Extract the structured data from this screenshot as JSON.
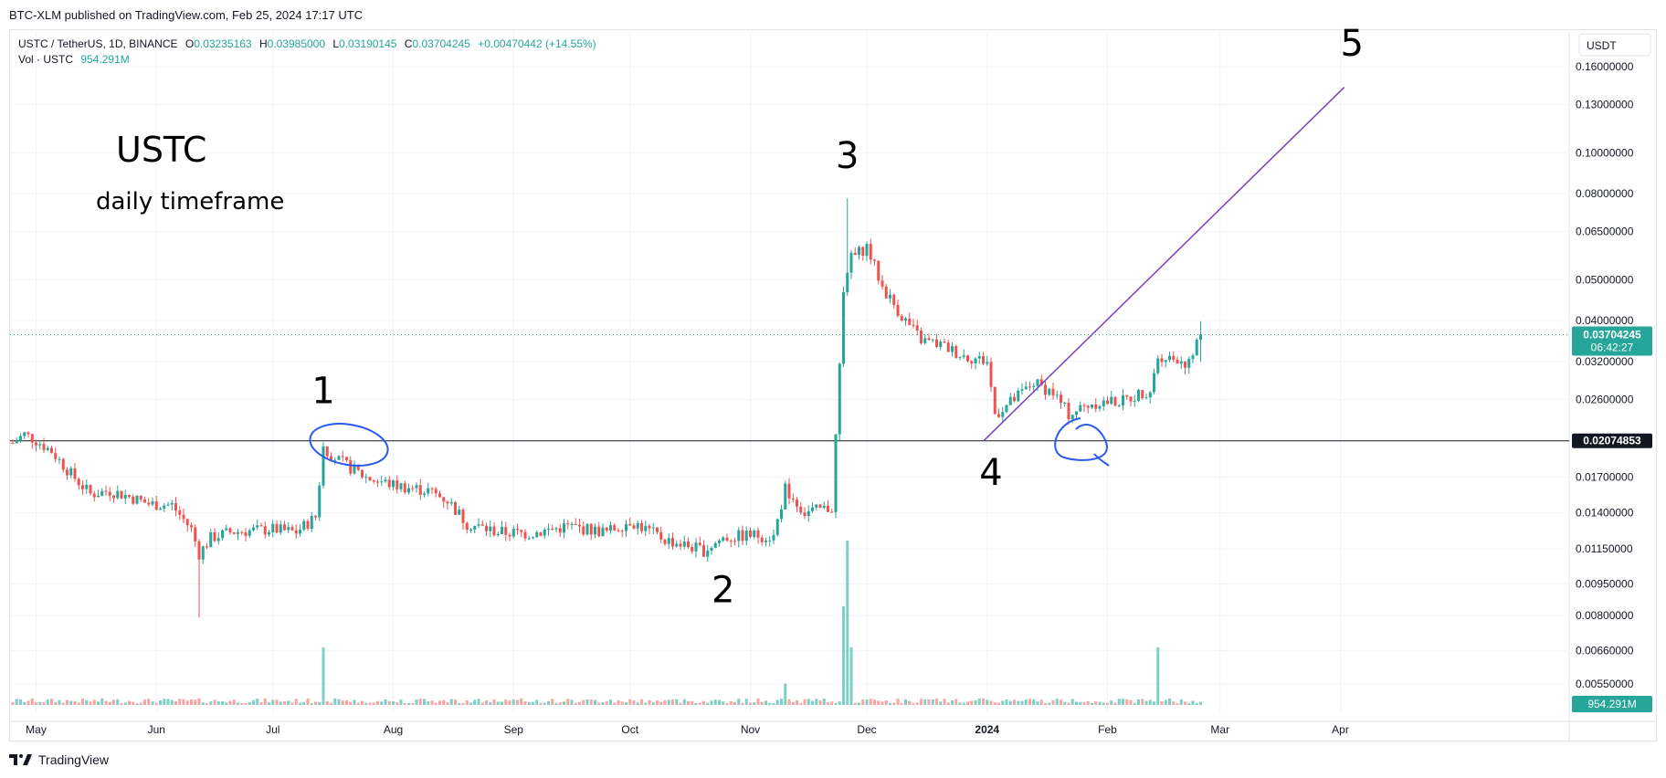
{
  "header": {
    "published": "BTC-XLM published on TradingView.com, Feb 25, 2024 17:17 UTC"
  },
  "legend": {
    "symbol": "USTC / TetherUS, 1D, BINANCE",
    "o_label": "O",
    "o": "0.03235163",
    "h_label": "H",
    "h": "0.03985000",
    "l_label": "L",
    "l": "0.03190145",
    "c_label": "C",
    "c": "0.03704245",
    "change": "+0.00470442 (+14.55%)",
    "vol_label": "Vol · USTC",
    "vol": "954.291M"
  },
  "currency_button": "USDT",
  "footer": {
    "brand": "TradingView"
  },
  "annotations": {
    "title": "USTC",
    "subtitle": "daily timeframe",
    "points": [
      "1",
      "2",
      "3",
      "4",
      "5"
    ]
  },
  "colors": {
    "up": "#26a69a",
    "down": "#ef5350",
    "trend": "#7b3fbf",
    "circle": "#2b59f0",
    "axis_text": "#131722"
  },
  "chart_data": {
    "type": "candlestick",
    "y_scale": "log",
    "ylim": [
      0.0044,
      0.19
    ],
    "y_ticks": [
      "0.16000000",
      "0.13000000",
      "0.10000000",
      "0.08000000",
      "0.06500000",
      "0.05000000",
      "0.04000000",
      "0.03200000",
      "0.02600000",
      "0.02074853",
      "0.01700000",
      "0.01400000",
      "0.01150000",
      "0.00950000",
      "0.00800000",
      "0.00660000",
      "0.00550000"
    ],
    "x_ticks": [
      "May",
      "Jun",
      "Jul",
      "Aug",
      "Sep",
      "Oct",
      "Nov",
      "Dec",
      "2024",
      "Feb",
      "Mar",
      "Apr"
    ],
    "last_price": "0.03704245",
    "countdown": "06:42:27",
    "horizontal_level": "0.02074853",
    "volume_label": "954.291M",
    "date_range": [
      "2023-04-25",
      "2024-02-25"
    ],
    "price_series": [
      {
        "date": "2023-04-25",
        "close": 0.0205
      },
      {
        "date": "2023-04-28",
        "close": 0.0215
      },
      {
        "date": "2023-05-01",
        "close": 0.0208
      },
      {
        "date": "2023-05-05",
        "close": 0.0196
      },
      {
        "date": "2023-05-10",
        "close": 0.0173
      },
      {
        "date": "2023-05-15",
        "close": 0.0155
      },
      {
        "date": "2023-05-20",
        "close": 0.0158
      },
      {
        "date": "2023-05-25",
        "close": 0.0153
      },
      {
        "date": "2023-05-30",
        "close": 0.0147
      },
      {
        "date": "2023-06-05",
        "close": 0.0146
      },
      {
        "date": "2023-06-10",
        "close": 0.0128
      },
      {
        "date": "2023-06-12",
        "close": 0.0112
      },
      {
        "date": "2023-06-15",
        "close": 0.0122
      },
      {
        "date": "2023-06-20",
        "close": 0.0126
      },
      {
        "date": "2023-06-25",
        "close": 0.0127
      },
      {
        "date": "2023-07-01",
        "close": 0.0128
      },
      {
        "date": "2023-07-07",
        "close": 0.0126
      },
      {
        "date": "2023-07-12",
        "close": 0.0137
      },
      {
        "date": "2023-07-14",
        "close": 0.02
      },
      {
        "date": "2023-07-18",
        "close": 0.0186
      },
      {
        "date": "2023-07-25",
        "close": 0.017
      },
      {
        "date": "2023-08-01",
        "close": 0.0163
      },
      {
        "date": "2023-08-10",
        "close": 0.0158
      },
      {
        "date": "2023-08-15",
        "close": 0.015
      },
      {
        "date": "2023-08-20",
        "close": 0.0132
      },
      {
        "date": "2023-08-28",
        "close": 0.0126
      },
      {
        "date": "2023-09-05",
        "close": 0.0125
      },
      {
        "date": "2023-09-15",
        "close": 0.013
      },
      {
        "date": "2023-09-25",
        "close": 0.0126
      },
      {
        "date": "2023-10-01",
        "close": 0.0134
      },
      {
        "date": "2023-10-10",
        "close": 0.0121
      },
      {
        "date": "2023-10-20",
        "close": 0.0114
      },
      {
        "date": "2023-10-25",
        "close": 0.0122
      },
      {
        "date": "2023-11-01",
        "close": 0.0124
      },
      {
        "date": "2023-11-07",
        "close": 0.0123
      },
      {
        "date": "2023-11-10",
        "close": 0.016
      },
      {
        "date": "2023-11-15",
        "close": 0.014
      },
      {
        "date": "2023-11-22",
        "close": 0.0144
      },
      {
        "date": "2023-11-25",
        "close": 0.046
      },
      {
        "date": "2023-11-27",
        "close": 0.056
      },
      {
        "date": "2023-12-01",
        "close": 0.06
      },
      {
        "date": "2023-12-05",
        "close": 0.048
      },
      {
        "date": "2023-12-10",
        "close": 0.041
      },
      {
        "date": "2023-12-15",
        "close": 0.036
      },
      {
        "date": "2023-12-20",
        "close": 0.035
      },
      {
        "date": "2023-12-26",
        "close": 0.033
      },
      {
        "date": "2024-01-01",
        "close": 0.032
      },
      {
        "date": "2024-01-03",
        "close": 0.024
      },
      {
        "date": "2024-01-08",
        "close": 0.026
      },
      {
        "date": "2024-01-13",
        "close": 0.0285
      },
      {
        "date": "2024-01-18",
        "close": 0.027
      },
      {
        "date": "2024-01-22",
        "close": 0.024
      },
      {
        "date": "2024-01-28",
        "close": 0.0255
      },
      {
        "date": "2024-02-05",
        "close": 0.0258
      },
      {
        "date": "2024-02-12",
        "close": 0.0275
      },
      {
        "date": "2024-02-14",
        "close": 0.033
      },
      {
        "date": "2024-02-19",
        "close": 0.0325
      },
      {
        "date": "2024-02-22",
        "close": 0.0315
      },
      {
        "date": "2024-02-25",
        "close": 0.03704
      }
    ],
    "volume_spikes": [
      {
        "date": "2023-07-14",
        "volume_fraction": 0.35
      },
      {
        "date": "2023-11-10",
        "volume_fraction": 0.13
      },
      {
        "date": "2023-11-25",
        "volume_fraction": 0.6
      },
      {
        "date": "2023-11-26",
        "volume_fraction": 1.0
      },
      {
        "date": "2023-11-27",
        "volume_fraction": 0.35
      },
      {
        "date": "2024-02-14",
        "volume_fraction": 0.35
      }
    ],
    "trendline": {
      "from": {
        "date": "2023-12-31",
        "price": 0.0207
      },
      "to": {
        "date": "2024-04-02",
        "price": 0.143
      }
    },
    "point_labels": [
      {
        "label": "1",
        "date": "2023-07-14",
        "price": 0.0255
      },
      {
        "label": "2",
        "date": "2023-10-25",
        "price": 0.0086
      },
      {
        "label": "3",
        "date": "2023-11-26",
        "price": 0.092
      },
      {
        "label": "4",
        "date": "2024-01-02",
        "price": 0.0163
      },
      {
        "label": "5",
        "date": "2024-04-04",
        "price": 0.17
      }
    ]
  }
}
